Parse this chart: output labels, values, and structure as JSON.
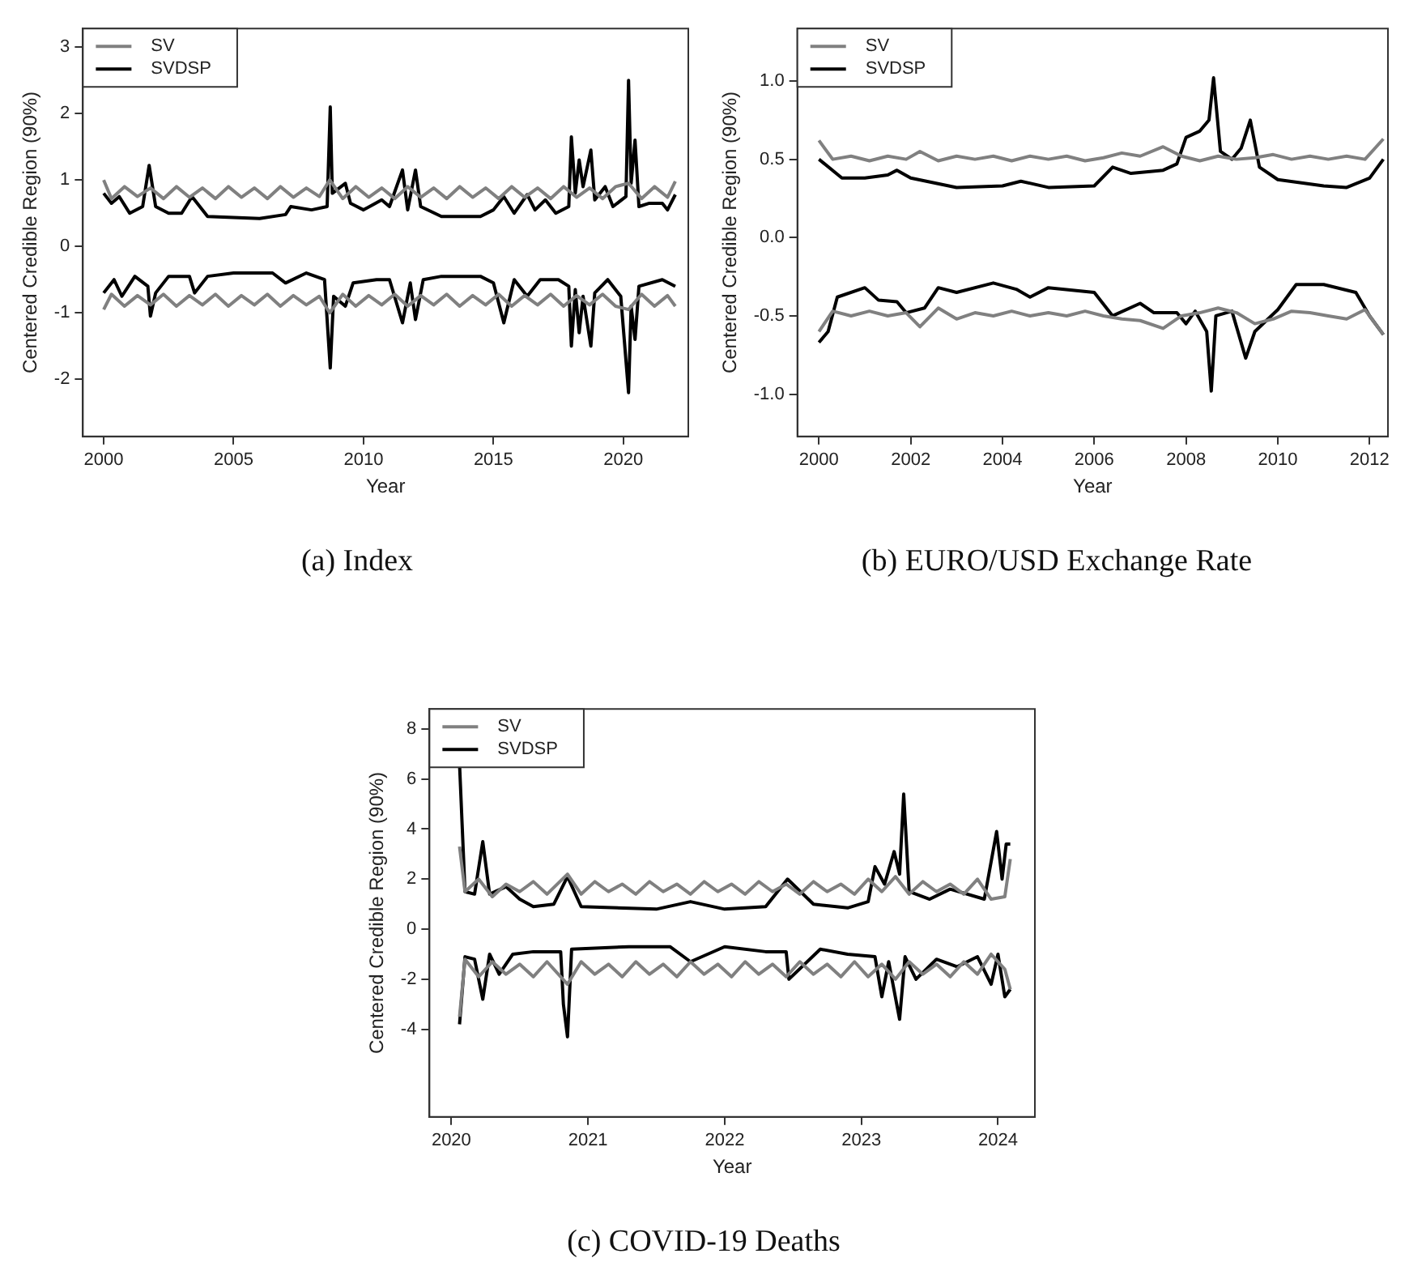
{
  "chart_data": [
    {
      "type": "line",
      "title": "(a) Index",
      "xlabel": "Year",
      "ylabel": "Centered Credible Region (90%)",
      "xlim": [
        1999.2,
        2022.5
      ],
      "ylim": [
        -2.86,
        3.28
      ],
      "xticks": [
        2000,
        2005,
        2010,
        2015,
        2020
      ],
      "yticks": [
        -2,
        -1,
        0,
        1,
        2,
        3
      ],
      "legend": "top left",
      "series": [
        {
          "name": "SV",
          "color": "#808080",
          "x": [
            2000,
            2000.3,
            2000.8,
            2001.3,
            2001.8,
            2002.3,
            2002.8,
            2003.3,
            2003.8,
            2004.3,
            2004.8,
            2005.3,
            2005.8,
            2006.3,
            2006.8,
            2007.3,
            2007.8,
            2008.3,
            2008.7,
            2009.2,
            2009.7,
            2010.2,
            2010.7,
            2011.2,
            2011.7,
            2012.2,
            2012.7,
            2013.2,
            2013.7,
            2014.2,
            2014.7,
            2015.2,
            2015.7,
            2016.2,
            2016.7,
            2017.2,
            2017.7,
            2018.2,
            2018.7,
            2019.2,
            2019.7,
            2020.2,
            2020.7,
            2021.2,
            2021.7,
            2022
          ],
          "values": [
            1.0,
            0.72,
            0.9,
            0.75,
            0.88,
            0.72,
            0.9,
            0.74,
            0.88,
            0.72,
            0.9,
            0.74,
            0.88,
            0.72,
            0.9,
            0.74,
            0.88,
            0.75,
            1.0,
            0.72,
            0.9,
            0.74,
            0.88,
            0.72,
            0.9,
            0.74,
            0.88,
            0.72,
            0.9,
            0.74,
            0.88,
            0.72,
            0.9,
            0.74,
            0.88,
            0.72,
            0.9,
            0.74,
            0.88,
            0.72,
            0.9,
            0.95,
            0.72,
            0.9,
            0.74,
            0.98
          ]
        },
        {
          "color": "#808080",
          "x": [
            2000,
            2000.3,
            2000.8,
            2001.3,
            2001.8,
            2002.3,
            2002.8,
            2003.3,
            2003.8,
            2004.3,
            2004.8,
            2005.3,
            2005.8,
            2006.3,
            2006.8,
            2007.3,
            2007.8,
            2008.3,
            2008.7,
            2009.2,
            2009.7,
            2010.2,
            2010.7,
            2011.2,
            2011.7,
            2012.2,
            2012.7,
            2013.2,
            2013.7,
            2014.2,
            2014.7,
            2015.2,
            2015.7,
            2016.2,
            2016.7,
            2017.2,
            2017.7,
            2018.2,
            2018.7,
            2019.2,
            2019.7,
            2020.2,
            2020.7,
            2021.2,
            2021.7,
            2022
          ],
          "values": [
            -0.95,
            -0.72,
            -0.9,
            -0.74,
            -0.88,
            -0.72,
            -0.9,
            -0.74,
            -0.88,
            -0.72,
            -0.9,
            -0.74,
            -0.88,
            -0.72,
            -0.9,
            -0.74,
            -0.88,
            -0.75,
            -1.0,
            -0.72,
            -0.9,
            -0.74,
            -0.88,
            -0.72,
            -0.9,
            -0.74,
            -0.88,
            -0.72,
            -0.9,
            -0.74,
            -0.88,
            -0.72,
            -0.9,
            -0.74,
            -0.88,
            -0.72,
            -0.9,
            -0.74,
            -0.88,
            -0.72,
            -0.9,
            -0.95,
            -0.72,
            -0.9,
            -0.74,
            -0.9
          ]
        },
        {
          "name": "SVDSP",
          "color": "#000000",
          "x": [
            2000,
            2000.3,
            2000.6,
            2001,
            2001.5,
            2001.75,
            2002,
            2002.5,
            2003,
            2003.4,
            2004,
            2006,
            2007,
            2007.2,
            2008,
            2008.6,
            2008.72,
            2008.8,
            2009.3,
            2009.5,
            2010,
            2010.7,
            2011,
            2011.5,
            2011.7,
            2012,
            2012.2,
            2013,
            2014.5,
            2015,
            2015.4,
            2015.8,
            2016.3,
            2016.6,
            2017,
            2017.4,
            2017.9,
            2018,
            2018.15,
            2018.3,
            2018.45,
            2018.75,
            2018.9,
            2019.3,
            2019.6,
            2020.1,
            2020.2,
            2020.3,
            2020.45,
            2020.6,
            2021,
            2021.5,
            2021.7,
            2022
          ],
          "values": [
            0.8,
            0.65,
            0.75,
            0.5,
            0.6,
            1.22,
            0.6,
            0.5,
            0.5,
            0.75,
            0.45,
            0.42,
            0.48,
            0.6,
            0.55,
            0.6,
            2.1,
            0.8,
            0.95,
            0.65,
            0.55,
            0.7,
            0.6,
            1.15,
            0.55,
            1.15,
            0.6,
            0.45,
            0.45,
            0.55,
            0.75,
            0.5,
            0.78,
            0.55,
            0.7,
            0.5,
            0.6,
            1.65,
            0.8,
            1.3,
            0.9,
            1.45,
            0.7,
            0.9,
            0.6,
            0.75,
            2.5,
            0.95,
            1.6,
            0.6,
            0.65,
            0.65,
            0.55,
            0.78
          ]
        },
        {
          "color": "#000000",
          "x": [
            2000,
            2000.4,
            2000.7,
            2001.2,
            2001.7,
            2001.8,
            2002,
            2002.5,
            2003.3,
            2003.5,
            2004,
            2005,
            2006.5,
            2007,
            2007.8,
            2008.5,
            2008.72,
            2008.85,
            2009.3,
            2009.6,
            2010.5,
            2011,
            2011.5,
            2011.8,
            2012,
            2012.3,
            2013,
            2014.5,
            2015,
            2015.4,
            2015.8,
            2016.3,
            2016.8,
            2017.5,
            2017.9,
            2018,
            2018.15,
            2018.3,
            2018.45,
            2018.75,
            2018.9,
            2019.4,
            2019.9,
            2020.2,
            2020.3,
            2020.45,
            2020.6,
            2021.5,
            2022
          ],
          "values": [
            -0.7,
            -0.5,
            -0.75,
            -0.45,
            -0.6,
            -1.05,
            -0.7,
            -0.45,
            -0.45,
            -0.7,
            -0.45,
            -0.4,
            -0.4,
            -0.55,
            -0.4,
            -0.5,
            -1.83,
            -0.75,
            -0.9,
            -0.55,
            -0.5,
            -0.5,
            -1.15,
            -0.55,
            -1.1,
            -0.5,
            -0.45,
            -0.45,
            -0.55,
            -1.15,
            -0.5,
            -0.75,
            -0.5,
            -0.5,
            -0.6,
            -1.5,
            -0.65,
            -1.3,
            -0.75,
            -1.5,
            -0.7,
            -0.5,
            -0.75,
            -2.2,
            -0.9,
            -1.4,
            -0.6,
            -0.5,
            -0.6
          ]
        }
      ]
    },
    {
      "type": "line",
      "title": "(b) EURO/USD Exchange Rate",
      "xlabel": "Year",
      "ylabel": "Centered Credible Region (90%)",
      "xlim": [
        1999.53,
        2012.4
      ],
      "ylim": [
        -1.27,
        1.335
      ],
      "xticks": [
        2000,
        2002,
        2004,
        2006,
        2008,
        2010,
        2012
      ],
      "yticks": [
        {
          "value": -1,
          "label": "-1.0"
        },
        -0.5,
        {
          "value": 0,
          "label": "0.0"
        },
        0.5,
        {
          "value": 1,
          "label": "1.0"
        }
      ],
      "legend": "top left",
      "series": [
        {
          "name": "SV",
          "color": "#808080",
          "x": [
            2000,
            2000.3,
            2000.7,
            2001.1,
            2001.5,
            2001.9,
            2002.2,
            2002.6,
            2003,
            2003.4,
            2003.8,
            2004.2,
            2004.6,
            2005,
            2005.4,
            2005.8,
            2006.2,
            2006.6,
            2007,
            2007.5,
            2007.9,
            2008.3,
            2008.7,
            2009.1,
            2009.5,
            2009.9,
            2010.3,
            2010.7,
            2011.1,
            2011.5,
            2011.9,
            2012.3
          ],
          "values": [
            0.62,
            0.5,
            0.52,
            0.49,
            0.52,
            0.5,
            0.55,
            0.49,
            0.52,
            0.5,
            0.52,
            0.49,
            0.52,
            0.5,
            0.52,
            0.49,
            0.51,
            0.54,
            0.52,
            0.58,
            0.52,
            0.49,
            0.52,
            0.5,
            0.51,
            0.53,
            0.5,
            0.52,
            0.5,
            0.52,
            0.5,
            0.63
          ]
        },
        {
          "color": "#808080",
          "x": [
            2000,
            2000.3,
            2000.7,
            2001.1,
            2001.5,
            2001.9,
            2002.2,
            2002.6,
            2003,
            2003.4,
            2003.8,
            2004.2,
            2004.6,
            2005,
            2005.4,
            2005.8,
            2006.2,
            2006.6,
            2007,
            2007.5,
            2007.9,
            2008.3,
            2008.7,
            2009.1,
            2009.5,
            2009.9,
            2010.3,
            2010.7,
            2011.1,
            2011.5,
            2011.9,
            2012.3
          ],
          "values": [
            -0.6,
            -0.47,
            -0.5,
            -0.47,
            -0.5,
            -0.48,
            -0.57,
            -0.45,
            -0.52,
            -0.48,
            -0.5,
            -0.47,
            -0.5,
            -0.48,
            -0.5,
            -0.47,
            -0.5,
            -0.52,
            -0.53,
            -0.58,
            -0.5,
            -0.48,
            -0.45,
            -0.48,
            -0.55,
            -0.52,
            -0.47,
            -0.48,
            -0.5,
            -0.52,
            -0.46,
            -0.62
          ]
        },
        {
          "name": "SVDSP",
          "color": "#000000",
          "x": [
            2000,
            2000.5,
            2001,
            2001.5,
            2001.7,
            2002,
            2003,
            2004,
            2004.4,
            2005,
            2006,
            2006.4,
            2006.8,
            2007.5,
            2007.8,
            2008,
            2008.3,
            2008.5,
            2008.6,
            2008.75,
            2009,
            2009.2,
            2009.4,
            2009.6,
            2010,
            2011,
            2011.5,
            2012,
            2012.3
          ],
          "values": [
            0.5,
            0.38,
            0.38,
            0.4,
            0.43,
            0.38,
            0.32,
            0.33,
            0.36,
            0.32,
            0.33,
            0.45,
            0.41,
            0.43,
            0.47,
            0.64,
            0.68,
            0.75,
            1.02,
            0.55,
            0.5,
            0.57,
            0.75,
            0.45,
            0.37,
            0.33,
            0.32,
            0.38,
            0.5
          ]
        },
        {
          "color": "#000000",
          "x": [
            2000,
            2000.2,
            2000.4,
            2001,
            2001.3,
            2001.7,
            2001.9,
            2002.3,
            2002.6,
            2003,
            2003.8,
            2004.3,
            2004.6,
            2005,
            2006,
            2006.4,
            2007,
            2007.3,
            2007.8,
            2008,
            2008.2,
            2008.45,
            2008.55,
            2008.65,
            2009,
            2009.3,
            2009.5,
            2010,
            2010.4,
            2011,
            2011.7,
            2012,
            2012.3
          ],
          "values": [
            -0.67,
            -0.6,
            -0.38,
            -0.32,
            -0.4,
            -0.41,
            -0.48,
            -0.45,
            -0.32,
            -0.35,
            -0.29,
            -0.33,
            -0.38,
            -0.32,
            -0.35,
            -0.5,
            -0.42,
            -0.48,
            -0.48,
            -0.55,
            -0.47,
            -0.6,
            -0.98,
            -0.5,
            -0.47,
            -0.77,
            -0.6,
            -0.46,
            -0.3,
            -0.3,
            -0.35,
            -0.5,
            -0.62
          ]
        }
      ]
    },
    {
      "type": "line",
      "title": "(c) COVID-19 Deaths",
      "xlabel": "Year",
      "ylabel": "Centered Credible Region (90%)",
      "xlim": [
        2019.84,
        2024.27
      ],
      "ylim": [
        -7.5,
        8.8
      ],
      "xticks": [
        2020,
        2021,
        2022,
        2023,
        2024
      ],
      "yticks": [
        -4,
        -2,
        0,
        2,
        4,
        6,
        8
      ],
      "legend": "top left",
      "series": [
        {
          "name": "SV",
          "color": "#808080",
          "x": [
            2020.06,
            2020.1,
            2020.2,
            2020.3,
            2020.4,
            2020.5,
            2020.6,
            2020.7,
            2020.85,
            2020.95,
            2021.05,
            2021.15,
            2021.25,
            2021.35,
            2021.45,
            2021.55,
            2021.65,
            2021.75,
            2021.85,
            2021.95,
            2022.05,
            2022.15,
            2022.25,
            2022.35,
            2022.45,
            2022.55,
            2022.65,
            2022.75,
            2022.85,
            2022.95,
            2023.05,
            2023.15,
            2023.25,
            2023.35,
            2023.45,
            2023.55,
            2023.65,
            2023.75,
            2023.85,
            2023.95,
            2024.05,
            2024.09
          ],
          "values": [
            3.3,
            1.5,
            2.0,
            1.3,
            1.8,
            1.5,
            1.9,
            1.4,
            2.2,
            1.4,
            1.9,
            1.5,
            1.8,
            1.4,
            1.9,
            1.5,
            1.8,
            1.4,
            1.9,
            1.5,
            1.8,
            1.4,
            1.9,
            1.5,
            1.8,
            1.4,
            1.9,
            1.5,
            1.8,
            1.4,
            2.0,
            1.5,
            2.1,
            1.4,
            1.9,
            1.5,
            1.8,
            1.4,
            2.0,
            1.2,
            1.3,
            2.8
          ]
        },
        {
          "color": "#808080",
          "x": [
            2020.06,
            2020.1,
            2020.2,
            2020.3,
            2020.4,
            2020.5,
            2020.6,
            2020.7,
            2020.85,
            2020.95,
            2021.05,
            2021.15,
            2021.25,
            2021.35,
            2021.45,
            2021.55,
            2021.65,
            2021.75,
            2021.85,
            2021.95,
            2022.05,
            2022.15,
            2022.25,
            2022.35,
            2022.45,
            2022.55,
            2022.65,
            2022.75,
            2022.85,
            2022.95,
            2023.05,
            2023.15,
            2023.25,
            2023.35,
            2023.45,
            2023.55,
            2023.65,
            2023.75,
            2023.85,
            2023.95,
            2024.05,
            2024.09
          ],
          "values": [
            -3.5,
            -1.2,
            -1.9,
            -1.3,
            -1.8,
            -1.4,
            -1.9,
            -1.3,
            -2.2,
            -1.3,
            -1.8,
            -1.4,
            -1.9,
            -1.3,
            -1.8,
            -1.4,
            -1.9,
            -1.3,
            -1.8,
            -1.4,
            -1.9,
            -1.3,
            -1.8,
            -1.4,
            -1.9,
            -1.3,
            -1.8,
            -1.4,
            -1.9,
            -1.3,
            -1.9,
            -1.4,
            -2.0,
            -1.3,
            -1.8,
            -1.4,
            -1.9,
            -1.3,
            -1.8,
            -1.0,
            -1.6,
            -2.4
          ]
        },
        {
          "name": "SVDSP",
          "color": "#000000",
          "x": [
            2020.06,
            2020.1,
            2020.17,
            2020.23,
            2020.28,
            2020.4,
            2020.5,
            2020.6,
            2020.75,
            2020.85,
            2020.95,
            2021.5,
            2021.75,
            2022,
            2022.3,
            2022.46,
            2022.65,
            2022.9,
            2023.05,
            2023.1,
            2023.17,
            2023.24,
            2023.28,
            2023.31,
            2023.35,
            2023.5,
            2023.65,
            2023.9,
            2023.99,
            2024.03,
            2024.06,
            2024.09
          ],
          "values": [
            6.6,
            1.5,
            1.4,
            3.5,
            1.4,
            1.7,
            1.2,
            0.9,
            1.0,
            2.1,
            0.9,
            0.8,
            1.1,
            0.8,
            0.9,
            2.0,
            1.0,
            0.85,
            1.1,
            2.5,
            1.8,
            3.1,
            2.2,
            5.4,
            1.5,
            1.2,
            1.6,
            1.2,
            3.9,
            2.0,
            3.4,
            3.4
          ]
        },
        {
          "color": "#000000",
          "x": [
            2020.06,
            2020.1,
            2020.17,
            2020.23,
            2020.28,
            2020.35,
            2020.45,
            2020.6,
            2020.8,
            2020.82,
            2020.85,
            2020.88,
            2021.3,
            2021.6,
            2021.75,
            2022,
            2022.3,
            2022.45,
            2022.47,
            2022.7,
            2022.9,
            2023.1,
            2023.15,
            2023.2,
            2023.28,
            2023.32,
            2023.4,
            2023.55,
            2023.7,
            2023.85,
            2023.95,
            2024,
            2024.05,
            2024.09
          ],
          "values": [
            -3.8,
            -1.1,
            -1.2,
            -2.8,
            -1.0,
            -1.8,
            -1.0,
            -0.9,
            -0.9,
            -3.0,
            -4.3,
            -0.8,
            -0.7,
            -0.7,
            -1.3,
            -0.7,
            -0.9,
            -0.9,
            -2.0,
            -0.8,
            -1.0,
            -1.1,
            -2.7,
            -1.3,
            -3.6,
            -1.1,
            -2.0,
            -1.2,
            -1.5,
            -1.1,
            -2.2,
            -1.0,
            -2.7,
            -2.4
          ]
        }
      ]
    }
  ]
}
